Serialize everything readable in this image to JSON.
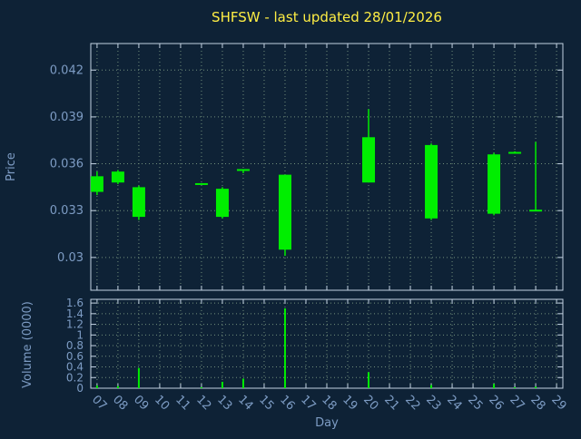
{
  "chart_data": {
    "type": "candlestick",
    "title": "SHFSW - last updated 28/01/2026",
    "xlabel": "Day",
    "legend": "none",
    "grid": "dotted",
    "xlim": [
      6.7,
      29.3
    ],
    "xtick_start": 7,
    "xticks": [
      "07",
      "08",
      "09",
      "10",
      "11",
      "12",
      "13",
      "14",
      "15",
      "16",
      "17",
      "18",
      "19",
      "20",
      "21",
      "22",
      "23",
      "24",
      "25",
      "26",
      "27",
      "28",
      "29"
    ],
    "price_panel": {
      "ylabel": "Price",
      "ylim": [
        0.0279,
        0.0437
      ],
      "yticks": [
        0.03,
        0.033,
        0.036,
        0.039,
        0.042
      ]
    },
    "volume_panel": {
      "ylabel": "Volume (0000)",
      "ylim": [
        0,
        1.67
      ],
      "yticks": [
        0,
        0.2,
        0.4,
        0.6,
        0.8,
        1,
        1.2,
        1.4,
        1.6
      ]
    },
    "candles": [
      {
        "day": 7,
        "label": "07",
        "open": 0.0342,
        "close": 0.0352,
        "high": 0.0355,
        "low": 0.034,
        "volume": 0.05
      },
      {
        "day": 8,
        "label": "08",
        "open": 0.0348,
        "close": 0.0355,
        "high": 0.0356,
        "low": 0.0347,
        "volume": 0.04
      },
      {
        "day": 9,
        "label": "09",
        "open": 0.0345,
        "close": 0.0326,
        "high": 0.0346,
        "low": 0.0324,
        "volume": 0.38
      },
      {
        "day": 12,
        "label": "12",
        "open": 0.0347,
        "close": 0.0347,
        "high": 0.0347,
        "low": 0.0347,
        "volume": 0.02
      },
      {
        "day": 13,
        "label": "13",
        "open": 0.0344,
        "close": 0.0326,
        "high": 0.0345,
        "low": 0.0325,
        "volume": 0.12
      },
      {
        "day": 14,
        "label": "14",
        "open": 0.0355,
        "close": 0.0356,
        "high": 0.0356,
        "low": 0.0354,
        "volume": 0.18
      },
      {
        "day": 16,
        "label": "16",
        "open": 0.0353,
        "close": 0.0305,
        "high": 0.0353,
        "low": 0.0301,
        "volume": 1.5
      },
      {
        "day": 20,
        "label": "20",
        "open": 0.0348,
        "close": 0.0377,
        "high": 0.0395,
        "low": 0.0348,
        "volume": 0.3
      },
      {
        "day": 23,
        "label": "23",
        "open": 0.0325,
        "close": 0.0372,
        "high": 0.0373,
        "low": 0.0324,
        "volume": 0.06
      },
      {
        "day": 26,
        "label": "26",
        "open": 0.0328,
        "close": 0.0366,
        "high": 0.0367,
        "low": 0.0327,
        "volume": 0.08
      },
      {
        "day": 27,
        "label": "27",
        "open": 0.0367,
        "close": 0.0367,
        "high": 0.0368,
        "low": 0.0367,
        "volume": 0.02
      },
      {
        "day": 28,
        "label": "28",
        "open": 0.033,
        "close": 0.033,
        "high": 0.0374,
        "low": 0.033,
        "volume": 0.03
      }
    ],
    "colors": {
      "background": "#0e2236",
      "candle": "#00ee00",
      "title": "#ffee44",
      "axis_text": "#7d9cc4",
      "border": "#c3d2e2",
      "grid": "#93b293"
    }
  }
}
